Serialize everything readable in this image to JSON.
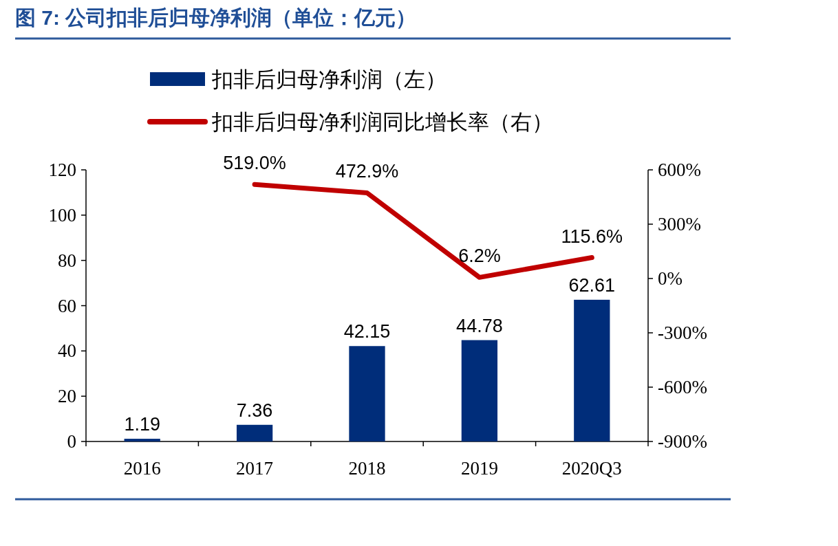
{
  "chart_data": {
    "type": "bar",
    "title": "图 7: 公司扣非后归母净利润（单位：亿元）",
    "categories": [
      "2016",
      "2017",
      "2018",
      "2019",
      "2020Q3"
    ],
    "series": [
      {
        "name": "扣非后归母净利润（左）",
        "color": "#002d7a",
        "values": [
          1.19,
          7.36,
          42.15,
          44.78,
          62.61
        ],
        "value_labels": [
          "1.19",
          "7.36",
          "42.15",
          "44.78",
          "62.61"
        ]
      },
      {
        "name": "扣非后归母净利润同比增长率（右）",
        "type": "line",
        "axis": "y2",
        "color": "#c00000",
        "values": [
          null,
          519.0,
          472.9,
          6.2,
          115.6
        ],
        "value_labels": [
          null,
          "519.0%",
          "472.9%",
          "6.2%",
          "115.6%"
        ]
      }
    ],
    "ylim": [
      0,
      120
    ],
    "yticks": [
      0,
      20,
      40,
      60,
      80,
      100,
      120
    ],
    "y2lim": [
      -900,
      600
    ],
    "y2ticks": [
      {
        "value": -900,
        "label": "-900%"
      },
      {
        "value": -600,
        "label": "-600%"
      },
      {
        "value": -300,
        "label": "-300%"
      },
      {
        "value": 0,
        "label": "0%"
      },
      {
        "value": 300,
        "label": "300%"
      },
      {
        "value": 600,
        "label": "600%"
      }
    ],
    "legend": "top",
    "grid": false,
    "marker": "none",
    "line_style": "solid"
  }
}
